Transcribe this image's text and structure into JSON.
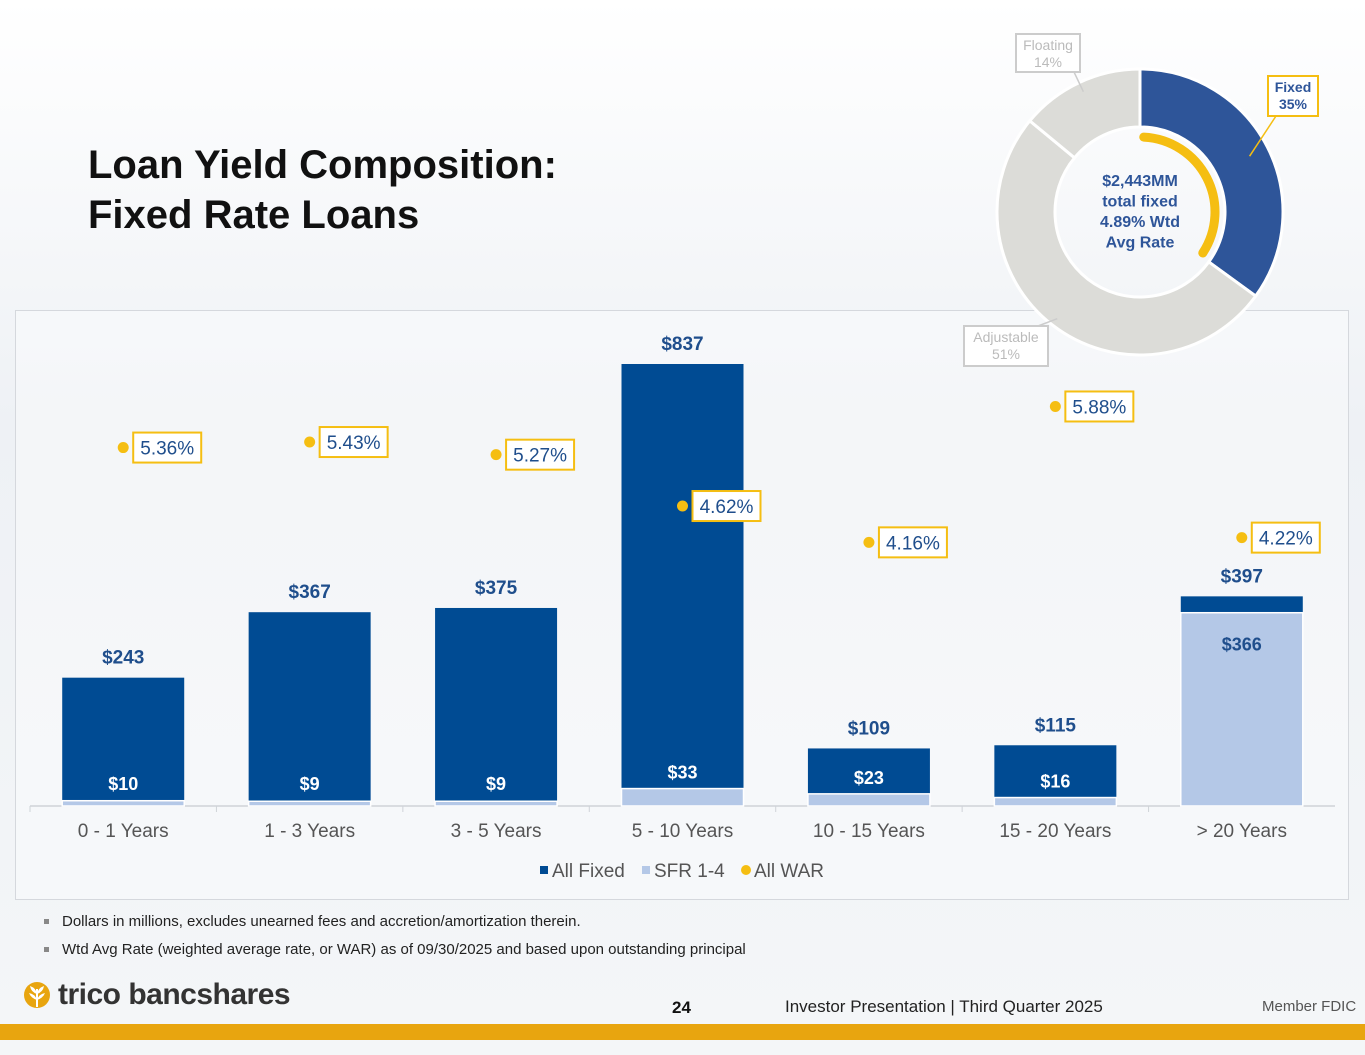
{
  "title": {
    "line1": "Loan Yield Composition:",
    "line2": "Fixed Rate Loans"
  },
  "colors": {
    "all_fixed": "#004b93",
    "sfr": "#b4c8e7",
    "war": "#f5be12",
    "donut_other": "#dcdcd8",
    "donut_fixed": "#2e5599",
    "label_text": "#1f4e8c"
  },
  "chart_data": [
    {
      "type": "bar",
      "categories": [
        "0 - 1 Years",
        "1 - 3 Years",
        "3 - 5 Years",
        "5 - 10 Years",
        "10 - 15 Years",
        "15 - 20 Years",
        "> 20 Years"
      ],
      "series": [
        {
          "name": "All Fixed",
          "values": [
            243,
            367,
            375,
            837,
            109,
            115,
            397
          ],
          "labels": [
            "$243",
            "$367",
            "$375",
            "$837",
            "$109",
            "$115",
            "$397"
          ]
        },
        {
          "name": "SFR 1-4",
          "values": [
            10,
            9,
            9,
            33,
            23,
            16,
            366
          ],
          "labels": [
            "$10",
            "$9",
            "$9",
            "$33",
            "$23",
            "$16",
            "$366"
          ]
        },
        {
          "name": "All WAR",
          "values": [
            5.36,
            5.43,
            5.27,
            4.62,
            4.16,
            5.88,
            4.22
          ],
          "labels": [
            "5.36%",
            "5.43%",
            "5.27%",
            "4.62%",
            "4.16%",
            "5.88%",
            "4.22%"
          ]
        }
      ],
      "legend": [
        "All Fixed",
        "SFR 1-4",
        "All WAR"
      ],
      "legend_position": "bottom",
      "ylim": [
        0,
        837
      ],
      "grid": false
    },
    {
      "type": "pie",
      "labels": [
        "Fixed",
        "Adjustable",
        "Floating"
      ],
      "values": [
        35,
        51,
        14
      ],
      "value_labels": [
        "35%",
        "51%",
        "14%"
      ],
      "center_text": [
        "$2,443MM",
        "total fixed",
        "4.89% Wtd",
        "Avg Rate"
      ],
      "center_rate": 4.89
    }
  ],
  "footnotes": [
    "Dollars in millions, excludes unearned fees and accretion/amortization therein.",
    "Wtd Avg Rate (weighted average rate, or WAR) as of 09/30/2025 and based upon outstanding principal"
  ],
  "footer": {
    "logo": "trico bancshares",
    "page_number": "24",
    "text": "Investor Presentation  |  Third Quarter 2025",
    "member": "Member FDIC"
  }
}
